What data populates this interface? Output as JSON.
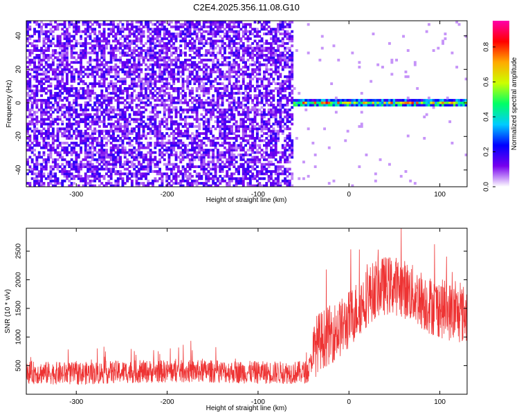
{
  "title": "C2E4.2025.356.11.08.G10",
  "chart_data": [
    {
      "type": "heatmap",
      "title": "C2E4.2025.356.11.08.G10",
      "xlabel": "Height of straight line (km)",
      "ylabel": "Frequency (Hz)",
      "xlim": [
        -355,
        130
      ],
      "ylim": [
        -50,
        49
      ],
      "xticks": [
        -300,
        -200,
        -100,
        0,
        100
      ],
      "yticks": [
        40,
        20,
        0,
        -20,
        -40
      ],
      "colorbar": {
        "label": "Normalized spectral amplitude",
        "range": [
          0,
          0.95
        ],
        "ticks": [
          "0.0",
          "0.2",
          "0.4",
          "0.6",
          "0.8"
        ],
        "colormap": [
          "#ffffff",
          "#7700ee",
          "#0000ff",
          "#00ccff",
          "#00ff66",
          "#ccff00",
          "#ffaa00",
          "#ff0000",
          "#ff00aa"
        ]
      },
      "features": {
        "noise_region_x": [
          -355,
          -62
        ],
        "noise_amplitude_range": [
          0.05,
          0.2
        ],
        "tone_region_x": [
          -68,
          130
        ],
        "tone_frequency_hz": 0,
        "tone_halfwidth_hz": 2,
        "tone_peak_amplitude": 0.9
      },
      "grid": false
    },
    {
      "type": "line",
      "xlabel": "Height of straight line (km)",
      "ylabel": "SNR (10 * v/v)",
      "xlim": [
        -355,
        130
      ],
      "ylim": [
        0,
        2900
      ],
      "xticks": [
        -300,
        -200,
        -100,
        0,
        100
      ],
      "yticks": [
        500,
        1000,
        1500,
        2000,
        2500
      ],
      "series": [
        {
          "color": "#ee3333",
          "envelope": {
            "x": [
              -355,
              -300,
              -250,
              -200,
              -150,
              -100,
              -60,
              -45,
              -35,
              -20,
              -5,
              10,
              20,
              30,
              40,
              50,
              60,
              70,
              80,
              90,
              100,
              110,
              120,
              130
            ],
            "y": [
              380,
              360,
              390,
              400,
              400,
              380,
              380,
              390,
              900,
              1050,
              1200,
              1500,
              1700,
              1850,
              1900,
              1900,
              1850,
              1750,
              1650,
              1550,
              1500,
              1450,
              1400,
              1400
            ]
          },
          "noise_amplitude": [
            250,
            650
          ]
        }
      ],
      "grid": false
    }
  ]
}
